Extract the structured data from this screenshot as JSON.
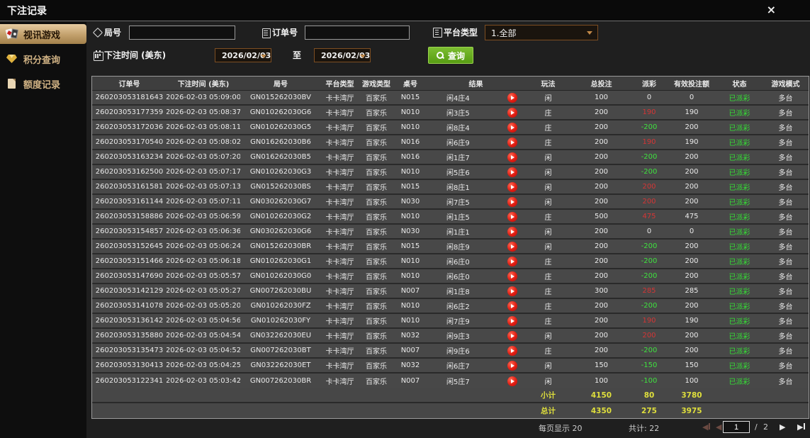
{
  "window": {
    "title": "下注记录",
    "close_label": "×"
  },
  "sidebar": {
    "items": [
      {
        "label": "视讯游戏",
        "icon": "poker-cards-icon",
        "active": true
      },
      {
        "label": "积分查询",
        "icon": "diamond-icon",
        "active": false
      },
      {
        "label": "额度记录",
        "icon": "document-icon",
        "active": false
      }
    ]
  },
  "filters": {
    "round": {
      "label": "局号",
      "value": "",
      "icon": "tag-icon"
    },
    "order": {
      "label": "订单号",
      "value": "",
      "icon": "clipboard-icon"
    },
    "platform": {
      "label": "平台类型",
      "value": "1.全部",
      "icon": "list-icon"
    },
    "bet_time": {
      "label": "下注时间 (美东)",
      "icon": "calendar-icon",
      "from": "2026/02/03",
      "to_label": "至",
      "to": "2026/02/03"
    },
    "query": {
      "label": "查询",
      "icon": "search-icon"
    }
  },
  "table": {
    "columns": [
      "订单号",
      "下注时间 (美东)",
      "局号",
      "平台类型",
      "游戏类型",
      "桌号",
      "结果",
      "玩法",
      "总投注",
      "派彩",
      "有效投注额",
      "状态",
      "游戏模式"
    ],
    "rows": [
      {
        "order_id": "260203053181643",
        "time": "2026-02-03 05:09:00",
        "round_id": "GN015262030BV",
        "platform": "卡卡湾厅",
        "game_type": "百家乐",
        "table_no": "N015",
        "result": "闲4庄4",
        "play": "闲",
        "total_bet": "100",
        "payout": "0",
        "valid_bet": "0",
        "status": "已派彩",
        "mode": "多台"
      },
      {
        "order_id": "260203053177359",
        "time": "2026-02-03 05:08:37",
        "round_id": "GN010262030G6",
        "platform": "卡卡湾厅",
        "game_type": "百家乐",
        "table_no": "N010",
        "result": "闲3庄5",
        "play": "庄",
        "total_bet": "200",
        "payout": "190",
        "valid_bet": "190",
        "status": "已派彩",
        "mode": "多台"
      },
      {
        "order_id": "260203053172036",
        "time": "2026-02-03 05:08:11",
        "round_id": "GN010262030G5",
        "platform": "卡卡湾厅",
        "game_type": "百家乐",
        "table_no": "N010",
        "result": "闲8庄4",
        "play": "庄",
        "total_bet": "200",
        "payout": "-200",
        "valid_bet": "200",
        "status": "已派彩",
        "mode": "多台"
      },
      {
        "order_id": "260203053170540",
        "time": "2026-02-03 05:08:02",
        "round_id": "GN016262030B6",
        "platform": "卡卡湾厅",
        "game_type": "百家乐",
        "table_no": "N016",
        "result": "闲6庄9",
        "play": "庄",
        "total_bet": "200",
        "payout": "190",
        "valid_bet": "190",
        "status": "已派彩",
        "mode": "多台"
      },
      {
        "order_id": "260203053163234",
        "time": "2026-02-03 05:07:20",
        "round_id": "GN016262030B5",
        "platform": "卡卡湾厅",
        "game_type": "百家乐",
        "table_no": "N016",
        "result": "闲1庄7",
        "play": "闲",
        "total_bet": "200",
        "payout": "-200",
        "valid_bet": "200",
        "status": "已派彩",
        "mode": "多台"
      },
      {
        "order_id": "260203053162500",
        "time": "2026-02-03 05:07:17",
        "round_id": "GN010262030G3",
        "platform": "卡卡湾厅",
        "game_type": "百家乐",
        "table_no": "N010",
        "result": "闲5庄6",
        "play": "闲",
        "total_bet": "200",
        "payout": "-200",
        "valid_bet": "200",
        "status": "已派彩",
        "mode": "多台"
      },
      {
        "order_id": "260203053161581",
        "time": "2026-02-03 05:07:13",
        "round_id": "GN015262030BS",
        "platform": "卡卡湾厅",
        "game_type": "百家乐",
        "table_no": "N015",
        "result": "闲8庄1",
        "play": "闲",
        "total_bet": "200",
        "payout": "200",
        "valid_bet": "200",
        "status": "已派彩",
        "mode": "多台"
      },
      {
        "order_id": "260203053161144",
        "time": "2026-02-03 05:07:11",
        "round_id": "GN030262030G7",
        "platform": "卡卡湾厅",
        "game_type": "百家乐",
        "table_no": "N030",
        "result": "闲7庄5",
        "play": "闲",
        "total_bet": "200",
        "payout": "200",
        "valid_bet": "200",
        "status": "已派彩",
        "mode": "多台"
      },
      {
        "order_id": "260203053158886",
        "time": "2026-02-03 05:06:59",
        "round_id": "GN010262030G2",
        "platform": "卡卡湾厅",
        "game_type": "百家乐",
        "table_no": "N010",
        "result": "闲1庄5",
        "play": "庄",
        "total_bet": "500",
        "payout": "475",
        "valid_bet": "475",
        "status": "已派彩",
        "mode": "多台"
      },
      {
        "order_id": "260203053154857",
        "time": "2026-02-03 05:06:36",
        "round_id": "GN030262030G6",
        "platform": "卡卡湾厅",
        "game_type": "百家乐",
        "table_no": "N030",
        "result": "闲1庄1",
        "play": "闲",
        "total_bet": "200",
        "payout": "0",
        "valid_bet": "0",
        "status": "已派彩",
        "mode": "多台"
      },
      {
        "order_id": "260203053152645",
        "time": "2026-02-03 05:06:24",
        "round_id": "GN015262030BR",
        "platform": "卡卡湾厅",
        "game_type": "百家乐",
        "table_no": "N015",
        "result": "闲8庄9",
        "play": "闲",
        "total_bet": "200",
        "payout": "-200",
        "valid_bet": "200",
        "status": "已派彩",
        "mode": "多台"
      },
      {
        "order_id": "260203053151466",
        "time": "2026-02-03 05:06:18",
        "round_id": "GN010262030G1",
        "platform": "卡卡湾厅",
        "game_type": "百家乐",
        "table_no": "N010",
        "result": "闲6庄0",
        "play": "庄",
        "total_bet": "200",
        "payout": "-200",
        "valid_bet": "200",
        "status": "已派彩",
        "mode": "多台"
      },
      {
        "order_id": "260203053147690",
        "time": "2026-02-03 05:05:57",
        "round_id": "GN010262030G0",
        "platform": "卡卡湾厅",
        "game_type": "百家乐",
        "table_no": "N010",
        "result": "闲6庄0",
        "play": "庄",
        "total_bet": "200",
        "payout": "-200",
        "valid_bet": "200",
        "status": "已派彩",
        "mode": "多台"
      },
      {
        "order_id": "260203053142129",
        "time": "2026-02-03 05:05:27",
        "round_id": "GN007262030BU",
        "platform": "卡卡湾厅",
        "game_type": "百家乐",
        "table_no": "N007",
        "result": "闲1庄8",
        "play": "庄",
        "total_bet": "300",
        "payout": "285",
        "valid_bet": "285",
        "status": "已派彩",
        "mode": "多台"
      },
      {
        "order_id": "260203053141078",
        "time": "2026-02-03 05:05:20",
        "round_id": "GN010262030FZ",
        "platform": "卡卡湾厅",
        "game_type": "百家乐",
        "table_no": "N010",
        "result": "闲6庄2",
        "play": "庄",
        "total_bet": "200",
        "payout": "-200",
        "valid_bet": "200",
        "status": "已派彩",
        "mode": "多台"
      },
      {
        "order_id": "260203053136142",
        "time": "2026-02-03 05:04:56",
        "round_id": "GN010262030FY",
        "platform": "卡卡湾厅",
        "game_type": "百家乐",
        "table_no": "N010",
        "result": "闲7庄9",
        "play": "庄",
        "total_bet": "200",
        "payout": "190",
        "valid_bet": "190",
        "status": "已派彩",
        "mode": "多台"
      },
      {
        "order_id": "260203053135880",
        "time": "2026-02-03 05:04:54",
        "round_id": "GN032262030EU",
        "platform": "卡卡湾厅",
        "game_type": "百家乐",
        "table_no": "N032",
        "result": "闲9庄3",
        "play": "闲",
        "total_bet": "200",
        "payout": "200",
        "valid_bet": "200",
        "status": "已派彩",
        "mode": "多台"
      },
      {
        "order_id": "260203053135473",
        "time": "2026-02-03 05:04:52",
        "round_id": "GN007262030BT",
        "platform": "卡卡湾厅",
        "game_type": "百家乐",
        "table_no": "N007",
        "result": "闲9庄6",
        "play": "庄",
        "total_bet": "200",
        "payout": "-200",
        "valid_bet": "200",
        "status": "已派彩",
        "mode": "多台"
      },
      {
        "order_id": "260203053130413",
        "time": "2026-02-03 05:04:25",
        "round_id": "GN032262030ET",
        "platform": "卡卡湾厅",
        "game_type": "百家乐",
        "table_no": "N032",
        "result": "闲6庄7",
        "play": "闲",
        "total_bet": "150",
        "payout": "-150",
        "valid_bet": "150",
        "status": "已派彩",
        "mode": "多台"
      },
      {
        "order_id": "260203053122341",
        "time": "2026-02-03 05:03:42",
        "round_id": "GN007262030BR",
        "platform": "卡卡湾厅",
        "game_type": "百家乐",
        "table_no": "N007",
        "result": "闲5庄7",
        "play": "闲",
        "total_bet": "100",
        "payout": "-100",
        "valid_bet": "100",
        "status": "已派彩",
        "mode": "多台"
      }
    ],
    "subtotal": {
      "label": "小计",
      "total_bet": "4150",
      "payout": "80",
      "valid_bet": "3780"
    },
    "total": {
      "label": "总计",
      "total_bet": "4350",
      "payout": "275",
      "valid_bet": "3975"
    }
  },
  "pagination": {
    "per_page": "每页显示 20",
    "total_count": "共计: 22",
    "page": "1",
    "separator": "/",
    "total_pages": "2"
  },
  "colors": {
    "payout_positive": "#d43535",
    "payout_negative": "#3fe23f",
    "status_green": "#35e035",
    "totals_yellow": "#dfdf3c",
    "header_gold": "#c69c5d",
    "sidebar_active_tan": "#c2a06c",
    "query_button_green": "#6bad22",
    "picker_border_brown": "#7d4e22"
  }
}
